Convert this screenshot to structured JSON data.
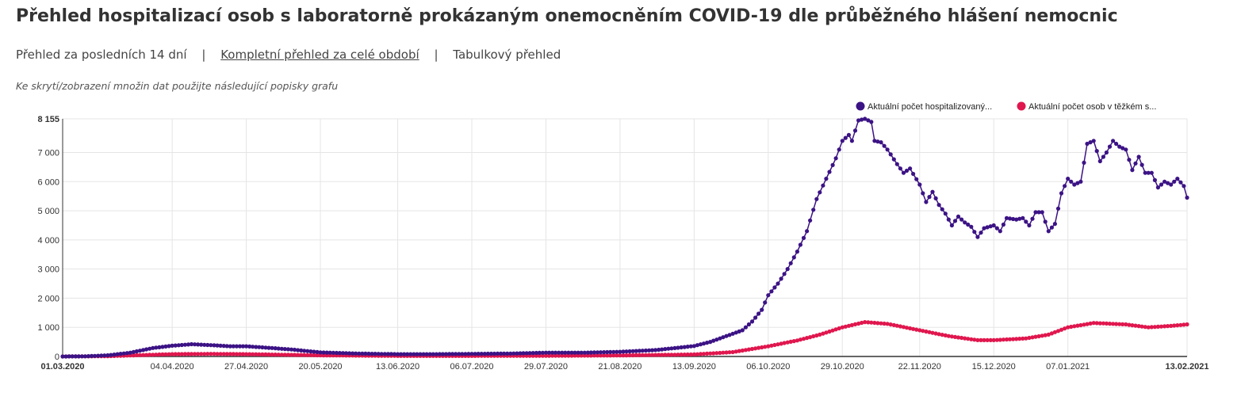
{
  "page": {
    "title": "Přehled hospitalizací osob s laboratorně prokázaným onemocněním COVID-19 dle průběžného hlášení nemocnic",
    "nav": [
      {
        "label": "Přehled za posledních 14 dní",
        "active": false
      },
      {
        "label": "Kompletní přehled za celé období",
        "active": true
      },
      {
        "label": "Tabulkový přehled",
        "active": false
      }
    ],
    "nav_separator": "|",
    "hint": "Ke skrytí/zobrazení množin dat použijte následující popisky grafu"
  },
  "colors": {
    "hospitalized": "#3c1385",
    "severe": "#e0174e",
    "grid": "#e5e5e5",
    "axis": "#333333"
  },
  "chart_data": {
    "type": "line",
    "x_start": "2020-03-01",
    "x_end": "2021-02-13",
    "ylim": [
      0,
      8155
    ],
    "y_ticks": [
      "0",
      "1 000",
      "2 000",
      "3 000",
      "4 000",
      "5 000",
      "6 000",
      "7 000",
      "8 155"
    ],
    "y_tick_values": [
      0,
      1000,
      2000,
      3000,
      4000,
      5000,
      6000,
      7000,
      8155
    ],
    "x_ticks": [
      {
        "date": "2020-03-01",
        "label": "01.03.2020",
        "bold": true
      },
      {
        "date": "2020-04-04",
        "label": "04.04.2020"
      },
      {
        "date": "2020-04-27",
        "label": "27.04.2020"
      },
      {
        "date": "2020-05-20",
        "label": "20.05.2020"
      },
      {
        "date": "2020-06-13",
        "label": "13.06.2020"
      },
      {
        "date": "2020-07-06",
        "label": "06.07.2020"
      },
      {
        "date": "2020-07-29",
        "label": "29.07.2020"
      },
      {
        "date": "2020-08-21",
        "label": "21.08.2020"
      },
      {
        "date": "2020-09-13",
        "label": "13.09.2020"
      },
      {
        "date": "2020-10-06",
        "label": "06.10.2020"
      },
      {
        "date": "2020-10-29",
        "label": "29.10.2020"
      },
      {
        "date": "2020-11-22",
        "label": "22.11.2020"
      },
      {
        "date": "2020-12-15",
        "label": "15.12.2020"
      },
      {
        "date": "2021-01-07",
        "label": "07.01.2021"
      },
      {
        "date": "2021-02-13",
        "label": "13.02.2021",
        "bold": true
      }
    ],
    "grid": true,
    "legend_position": "top-right",
    "series": [
      {
        "name": "Aktuální počet hospitalizovaný...",
        "color": "#3c1385",
        "points": [
          [
            "2020-03-01",
            0
          ],
          [
            "2020-03-08",
            5
          ],
          [
            "2020-03-15",
            40
          ],
          [
            "2020-03-22",
            130
          ],
          [
            "2020-03-29",
            290
          ],
          [
            "2020-04-04",
            370
          ],
          [
            "2020-04-10",
            420
          ],
          [
            "2020-04-16",
            390
          ],
          [
            "2020-04-22",
            350
          ],
          [
            "2020-04-27",
            350
          ],
          [
            "2020-05-05",
            290
          ],
          [
            "2020-05-12",
            230
          ],
          [
            "2020-05-20",
            140
          ],
          [
            "2020-06-01",
            100
          ],
          [
            "2020-06-13",
            80
          ],
          [
            "2020-06-25",
            80
          ],
          [
            "2020-07-06",
            90
          ],
          [
            "2020-07-18",
            100
          ],
          [
            "2020-07-29",
            130
          ],
          [
            "2020-08-10",
            130
          ],
          [
            "2020-08-21",
            160
          ],
          [
            "2020-09-01",
            220
          ],
          [
            "2020-09-08",
            300
          ],
          [
            "2020-09-13",
            360
          ],
          [
            "2020-09-18",
            500
          ],
          [
            "2020-09-23",
            700
          ],
          [
            "2020-09-28",
            900
          ],
          [
            "2020-10-01",
            1200
          ],
          [
            "2020-10-04",
            1600
          ],
          [
            "2020-10-06",
            2100
          ],
          [
            "2020-10-09",
            2500
          ],
          [
            "2020-10-12",
            3000
          ],
          [
            "2020-10-15",
            3600
          ],
          [
            "2020-10-18",
            4300
          ],
          [
            "2020-10-21",
            5400
          ],
          [
            "2020-10-24",
            6100
          ],
          [
            "2020-10-27",
            6800
          ],
          [
            "2020-10-29",
            7400
          ],
          [
            "2020-10-31",
            7600
          ],
          [
            "2020-11-01",
            7400
          ],
          [
            "2020-11-03",
            8100
          ],
          [
            "2020-11-05",
            8155
          ],
          [
            "2020-11-07",
            8050
          ],
          [
            "2020-11-08",
            7400
          ],
          [
            "2020-11-10",
            7350
          ],
          [
            "2020-11-12",
            7100
          ],
          [
            "2020-11-15",
            6600
          ],
          [
            "2020-11-17",
            6300
          ],
          [
            "2020-11-19",
            6450
          ],
          [
            "2020-11-22",
            5900
          ],
          [
            "2020-11-24",
            5300
          ],
          [
            "2020-11-26",
            5650
          ],
          [
            "2020-11-28",
            5200
          ],
          [
            "2020-11-30",
            4900
          ],
          [
            "2020-12-02",
            4500
          ],
          [
            "2020-12-04",
            4800
          ],
          [
            "2020-12-06",
            4600
          ],
          [
            "2020-12-08",
            4450
          ],
          [
            "2020-12-10",
            4100
          ],
          [
            "2020-12-12",
            4400
          ],
          [
            "2020-12-15",
            4500
          ],
          [
            "2020-12-17",
            4300
          ],
          [
            "2020-12-19",
            4750
          ],
          [
            "2020-12-22",
            4700
          ],
          [
            "2020-12-24",
            4750
          ],
          [
            "2020-12-26",
            4500
          ],
          [
            "2020-12-28",
            4950
          ],
          [
            "2020-12-30",
            4950
          ],
          [
            "2021-01-01",
            4300
          ],
          [
            "2021-01-03",
            4550
          ],
          [
            "2021-01-05",
            5600
          ],
          [
            "2021-01-07",
            6100
          ],
          [
            "2021-01-09",
            5900
          ],
          [
            "2021-01-11",
            6000
          ],
          [
            "2021-01-13",
            7300
          ],
          [
            "2021-01-15",
            7400
          ],
          [
            "2021-01-17",
            6700
          ],
          [
            "2021-01-19",
            7000
          ],
          [
            "2021-01-21",
            7400
          ],
          [
            "2021-01-23",
            7200
          ],
          [
            "2021-01-25",
            7100
          ],
          [
            "2021-01-27",
            6400
          ],
          [
            "2021-01-29",
            6850
          ],
          [
            "2021-01-31",
            6300
          ],
          [
            "2021-02-02",
            6300
          ],
          [
            "2021-02-04",
            5800
          ],
          [
            "2021-02-06",
            6000
          ],
          [
            "2021-02-08",
            5900
          ],
          [
            "2021-02-10",
            6100
          ],
          [
            "2021-02-12",
            5850
          ],
          [
            "2021-02-13",
            5450
          ]
        ]
      },
      {
        "name": "Aktuální počet osob v těžkém s...",
        "color": "#e0174e",
        "points": [
          [
            "2020-03-01",
            0
          ],
          [
            "2020-03-15",
            10
          ],
          [
            "2020-03-29",
            60
          ],
          [
            "2020-04-04",
            80
          ],
          [
            "2020-04-16",
            90
          ],
          [
            "2020-04-27",
            80
          ],
          [
            "2020-05-20",
            40
          ],
          [
            "2020-06-13",
            20
          ],
          [
            "2020-07-06",
            20
          ],
          [
            "2020-07-29",
            25
          ],
          [
            "2020-08-21",
            35
          ],
          [
            "2020-09-13",
            70
          ],
          [
            "2020-09-25",
            150
          ],
          [
            "2020-10-06",
            350
          ],
          [
            "2020-10-15",
            550
          ],
          [
            "2020-10-22",
            750
          ],
          [
            "2020-10-29",
            1000
          ],
          [
            "2020-11-05",
            1180
          ],
          [
            "2020-11-12",
            1120
          ],
          [
            "2020-11-22",
            900
          ],
          [
            "2020-12-01",
            700
          ],
          [
            "2020-12-10",
            560
          ],
          [
            "2020-12-15",
            560
          ],
          [
            "2020-12-25",
            620
          ],
          [
            "2021-01-01",
            750
          ],
          [
            "2021-01-07",
            1000
          ],
          [
            "2021-01-15",
            1150
          ],
          [
            "2021-01-25",
            1100
          ],
          [
            "2021-02-01",
            1000
          ],
          [
            "2021-02-08",
            1050
          ],
          [
            "2021-02-13",
            1100
          ]
        ]
      }
    ]
  }
}
